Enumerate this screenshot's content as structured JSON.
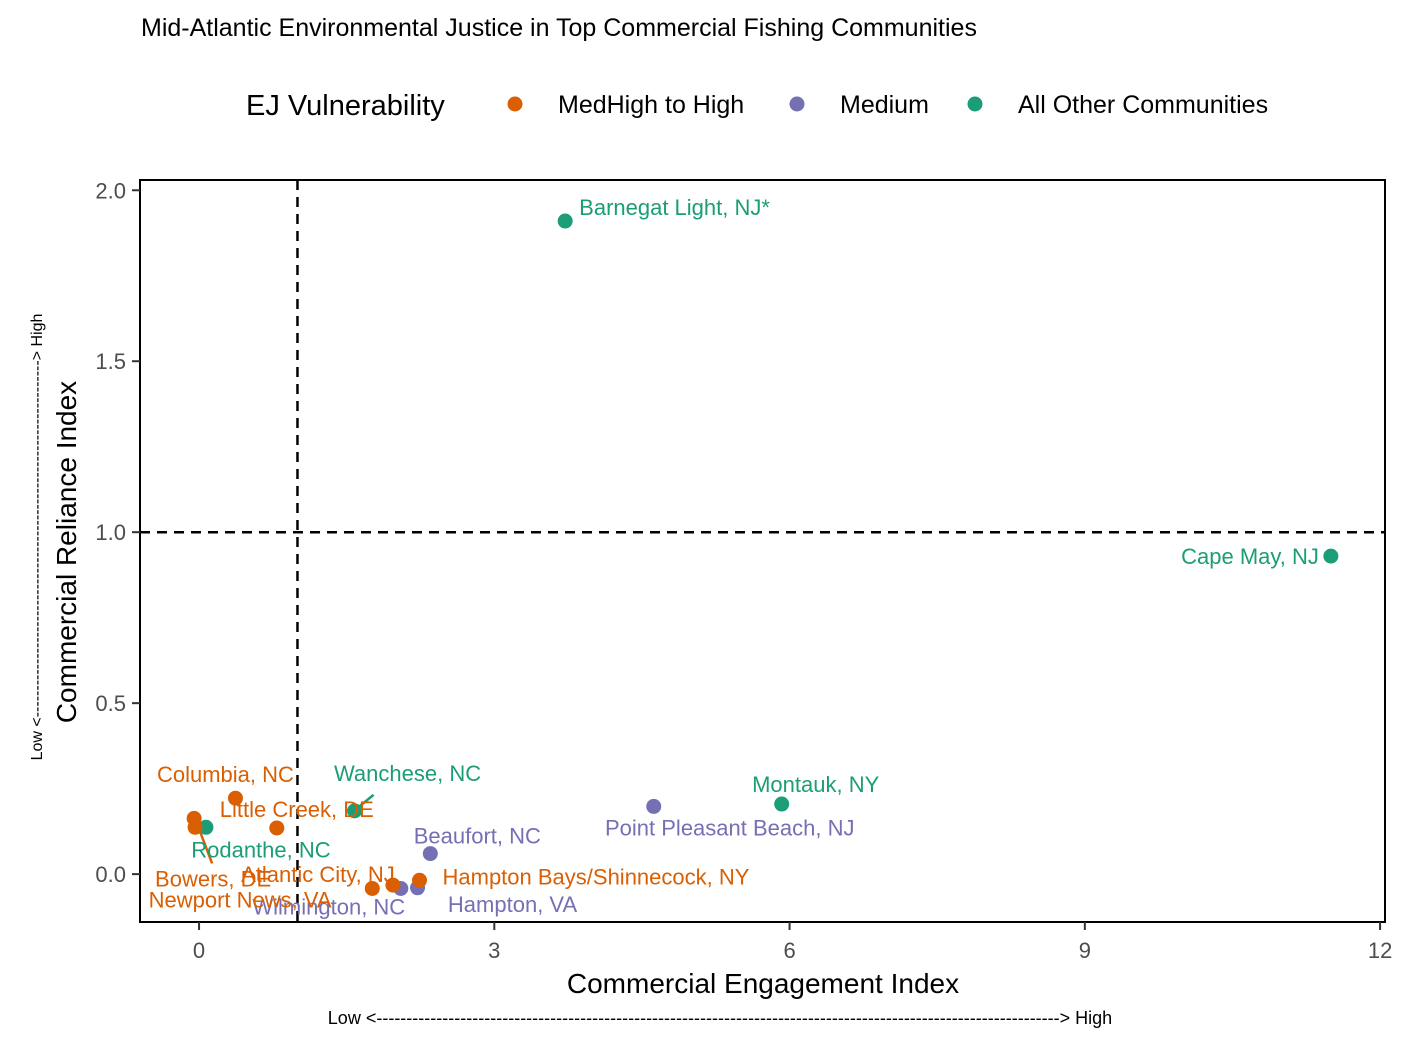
{
  "chart_data": {
    "type": "scatter",
    "title": "Mid-Atlantic Environmental Justice in Top Commercial Fishing Communities",
    "xlabel": "Commercial Engagement Index",
    "ylabel": "Commercial Reliance Index",
    "x_direction_label": "Low <------------------------------------------------------------------------------------------------------------------> High",
    "y_direction_label": "Low <-------------------------------------------------------------------> High",
    "xlim": [
      -0.6,
      12.05
    ],
    "ylim": [
      -0.14,
      2.03
    ],
    "x_ticks": [
      0,
      3,
      6,
      9,
      12
    ],
    "x_tick_labels": [
      "0",
      "3",
      "6",
      "9",
      "12"
    ],
    "y_ticks": [
      0,
      0.5,
      1,
      1.5,
      2
    ],
    "y_tick_labels": [
      "0.0",
      "0.5",
      "1.0",
      "1.5",
      "2.0"
    ],
    "reference_lines": {
      "x": 1,
      "y": 1,
      "style": "dashed"
    },
    "legend": {
      "title": "EJ Vulnerability",
      "position": "top",
      "entries": [
        {
          "label": "MedHigh to High",
          "color": "#D95F02"
        },
        {
          "label": "Medium",
          "color": "#7570B3"
        },
        {
          "label": "All Other Communities",
          "color": "#1B9E77"
        }
      ]
    },
    "grid": false,
    "points": [
      {
        "label": "Barnegat Light, NJ*",
        "x": 3.72,
        "y": 1.91,
        "group": "All Other Communities"
      },
      {
        "label": "Cape May, NJ",
        "x": 11.5,
        "y": 0.93,
        "group": "All Other Communities"
      },
      {
        "label": "Montauk, NY",
        "x": 5.92,
        "y": 0.205,
        "group": "All Other Communities"
      },
      {
        "label": "Wanchese, NC",
        "x": 1.58,
        "y": 0.185,
        "group": "All Other Communities"
      },
      {
        "label": "Rodanthe, NC",
        "x": 0.07,
        "y": 0.137,
        "group": "All Other Communities"
      },
      {
        "label": "Point Pleasant Beach, NJ",
        "x": 4.62,
        "y": 0.198,
        "group": "Medium"
      },
      {
        "label": "Beaufort, NC",
        "x": 2.35,
        "y": 0.06,
        "group": "Medium"
      },
      {
        "label": "Hampton, VA",
        "x": 2.22,
        "y": -0.04,
        "group": "Medium"
      },
      {
        "label": "Wilmington, NC",
        "x": 2.05,
        "y": -0.042,
        "group": "Medium"
      },
      {
        "label": "Columbia, NC",
        "x": 0.37,
        "y": 0.222,
        "group": "MedHigh to High"
      },
      {
        "label": "Little Creek, DE",
        "x": 0.79,
        "y": 0.135,
        "group": "MedHigh to High"
      },
      {
        "label": "Bowers, DE",
        "x": -0.05,
        "y": 0.163,
        "group": "MedHigh to High"
      },
      {
        "label": "Newport News, VA",
        "x": -0.04,
        "y": 0.137,
        "group": "MedHigh to High"
      },
      {
        "label": "Atlantic City, NJ",
        "x": 1.97,
        "y": -0.032,
        "group": "MedHigh to High"
      },
      {
        "label": "Hampton Bays/Shinnecock, NY",
        "x": 2.24,
        "y": -0.018,
        "group": "MedHigh to High"
      },
      {
        "label": "Hampton Bays/Shinnecock, NY",
        "x": 1.76,
        "y": -0.042,
        "group": "MedHigh to High"
      }
    ]
  }
}
